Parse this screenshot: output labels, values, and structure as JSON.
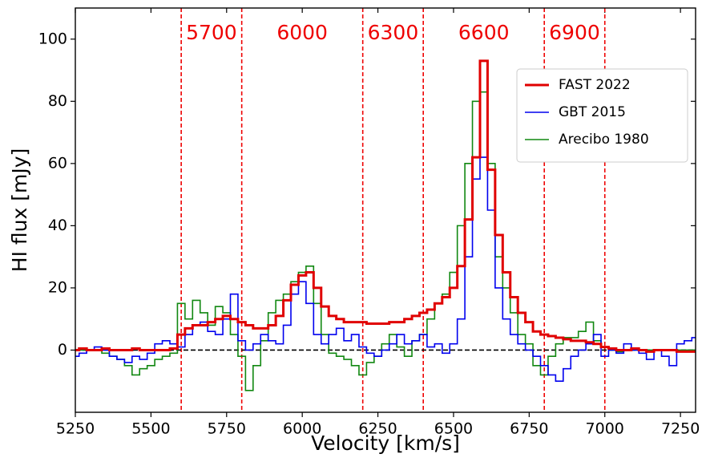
{
  "chart_data": {
    "type": "step",
    "x_label": "Velocity [km/s]",
    "y_label": "HI flux [mJy]",
    "xlim": [
      5250,
      7300
    ],
    "ylim": [
      -20,
      110
    ],
    "xticks": [
      5250,
      5500,
      5750,
      6000,
      6250,
      6500,
      6750,
      7000,
      7250
    ],
    "yticks": [
      0,
      20,
      40,
      60,
      80,
      100
    ],
    "vlines": [
      5600,
      5800,
      6200,
      6400,
      6800,
      7000
    ],
    "vline_color": "#e00",
    "hline": 0,
    "annotations": [
      5700,
      6000,
      6300,
      6600,
      6900
    ],
    "legend": "upper right",
    "x": [
      5250,
      5275,
      5300,
      5325,
      5350,
      5375,
      5400,
      5425,
      5450,
      5475,
      5500,
      5525,
      5550,
      5575,
      5600,
      5625,
      5650,
      5675,
      5700,
      5725,
      5750,
      5775,
      5800,
      5825,
      5850,
      5875,
      5900,
      5925,
      5950,
      5975,
      6000,
      6025,
      6050,
      6075,
      6100,
      6125,
      6150,
      6175,
      6200,
      6225,
      6250,
      6275,
      6300,
      6325,
      6350,
      6375,
      6400,
      6425,
      6450,
      6475,
      6500,
      6525,
      6550,
      6575,
      6600,
      6625,
      6650,
      6675,
      6700,
      6725,
      6750,
      6775,
      6800,
      6825,
      6850,
      6875,
      6900,
      6925,
      6950,
      6975,
      7000,
      7025,
      7050,
      7075,
      7100,
      7125,
      7150,
      7175,
      7200,
      7225,
      7250,
      7275,
      7300
    ],
    "series": [
      {
        "name": "FAST 2022",
        "color": "#e00000",
        "width": 3,
        "values": [
          0,
          0.5,
          0,
          0,
          0.5,
          0,
          0,
          0,
          0.5,
          0,
          0,
          0,
          0,
          0.5,
          5,
          7,
          8,
          8,
          9,
          10,
          11,
          10,
          9,
          8,
          7,
          7,
          8,
          11,
          16,
          21,
          24,
          25,
          20,
          14,
          11,
          10,
          9,
          9,
          9,
          8.5,
          8.5,
          8.5,
          9,
          9,
          10,
          11,
          12,
          13,
          15,
          17,
          20,
          27,
          42,
          62,
          93,
          58,
          37,
          25,
          17,
          12,
          9,
          6,
          5,
          4.5,
          4,
          3.5,
          3,
          3,
          2.5,
          2,
          1,
          0.5,
          0,
          0,
          0.5,
          0,
          -0.5,
          0,
          0,
          0,
          -0.5,
          -0.5,
          -0.5
        ]
      },
      {
        "name": "GBT 2015",
        "color": "#0000ee",
        "width": 1.6,
        "values": [
          -2,
          -1,
          0,
          1,
          0,
          -2,
          -3,
          -4,
          -2,
          -3,
          -1,
          2,
          3,
          2,
          1,
          5,
          8,
          9,
          6,
          5,
          10,
          18,
          3,
          0,
          2,
          5,
          3,
          2,
          8,
          18,
          22,
          15,
          5,
          2,
          5,
          7,
          3,
          5,
          1,
          -1,
          -2,
          0,
          2,
          5,
          2,
          3,
          5,
          1,
          2,
          -1,
          2,
          10,
          30,
          55,
          62,
          45,
          20,
          10,
          5,
          2,
          0,
          -2,
          -5,
          -8,
          -10,
          -6,
          -2,
          0,
          2,
          5,
          -2,
          0,
          -1,
          2,
          0,
          -1,
          -3,
          0,
          -2,
          -5,
          2,
          3,
          4
        ]
      },
      {
        "name": "Arecibo 1980",
        "color": "#118811",
        "width": 1.6,
        "values": [
          0,
          0,
          0,
          0,
          -1,
          -2,
          -3,
          -5,
          -8,
          -6,
          -5,
          -3,
          -2,
          -1,
          15,
          10,
          16,
          12,
          8,
          14,
          12,
          5,
          -2,
          -13,
          -5,
          3,
          12,
          16,
          18,
          22,
          25,
          27,
          15,
          5,
          -1,
          -2,
          -3,
          -5,
          -8,
          -4,
          -2,
          2,
          5,
          1,
          -2,
          3,
          5,
          10,
          15,
          18,
          25,
          40,
          60,
          80,
          83,
          60,
          30,
          20,
          12,
          5,
          2,
          -5,
          -8,
          -2,
          2,
          4,
          4,
          6,
          9,
          3,
          1,
          0,
          -0.5,
          0,
          0,
          0,
          0,
          0,
          0,
          0,
          0,
          0,
          0
        ]
      }
    ]
  }
}
